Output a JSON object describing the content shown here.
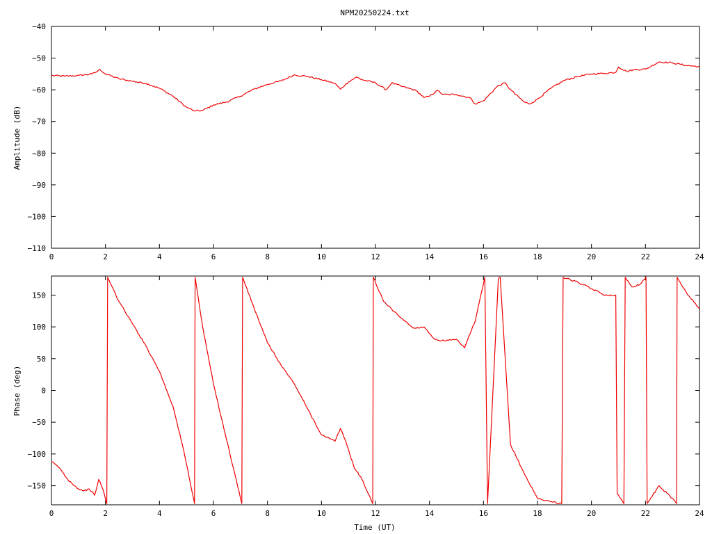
{
  "title": "NPM20250224.txt",
  "colors": {
    "series": "#ee0000",
    "axis": "#000000",
    "background": "#ffffff"
  },
  "chart_data": [
    {
      "type": "line",
      "title": "NPM20250224.txt",
      "xlabel": "",
      "ylabel": "Amplitude (dB)",
      "xlim": [
        0,
        24
      ],
      "ylim": [
        -110,
        -40
      ],
      "x_ticks": [
        0,
        2,
        4,
        6,
        8,
        10,
        12,
        14,
        16,
        18,
        20,
        22,
        24
      ],
      "y_ticks": [
        -110,
        -100,
        -90,
        -80,
        -70,
        -60,
        -50,
        -40
      ],
      "x_tick_labels": [
        "0",
        "2",
        "4",
        "6",
        "8",
        "10",
        "12",
        "14",
        "16",
        "18",
        "20",
        "22",
        "24"
      ],
      "y_tick_labels": [
        "−110",
        "−100",
        "−90",
        "−80",
        "−70",
        "−60",
        "−50",
        "−40"
      ],
      "grid": false,
      "series": [
        {
          "x": [
            0,
            0.5,
            1.0,
            1.5,
            1.7,
            1.8,
            2.0,
            2.5,
            3.0,
            3.5,
            4.0,
            4.5,
            5.0,
            5.3,
            5.6,
            6.0,
            6.5,
            7.0,
            7.5,
            8.0,
            8.5,
            9.0,
            9.5,
            10.0,
            10.5,
            10.7,
            11.0,
            11.3,
            11.5,
            12.0,
            12.4,
            12.6,
            13.0,
            13.5,
            13.8,
            14.0,
            14.3,
            14.5,
            15.0,
            15.5,
            15.7,
            16.0,
            16.5,
            16.8,
            17.0,
            17.5,
            17.7,
            18.0,
            18.5,
            19.0,
            19.5,
            20.0,
            20.5,
            20.9,
            21.0,
            21.3,
            21.6,
            22.0,
            22.5,
            23.0,
            23.5,
            24.0
          ],
          "y": [
            -55.5,
            -55.7,
            -55.5,
            -55.0,
            -54.2,
            -53.6,
            -55.0,
            -56.5,
            -57.3,
            -58.0,
            -59.5,
            -62.0,
            -65.5,
            -66.7,
            -66.5,
            -64.8,
            -63.8,
            -62.0,
            -59.8,
            -58.3,
            -57.2,
            -55.3,
            -55.8,
            -56.8,
            -58.0,
            -59.8,
            -57.5,
            -56.0,
            -56.8,
            -57.8,
            -60.0,
            -57.8,
            -59.0,
            -60.2,
            -62.5,
            -62.0,
            -60.2,
            -61.5,
            -61.5,
            -62.5,
            -64.5,
            -63.5,
            -59.0,
            -57.8,
            -60.0,
            -63.8,
            -64.5,
            -63.0,
            -59.5,
            -57.0,
            -55.8,
            -55.0,
            -54.8,
            -54.5,
            -52.8,
            -54.2,
            -53.6,
            -53.5,
            -51.2,
            -51.5,
            -52.3,
            -52.7
          ]
        }
      ]
    },
    {
      "type": "line",
      "title": "",
      "xlabel": "Time (UT)",
      "ylabel": "Phase (deg)",
      "xlim": [
        0,
        24
      ],
      "ylim": [
        -180,
        180
      ],
      "x_ticks": [
        0,
        2,
        4,
        6,
        8,
        10,
        12,
        14,
        16,
        18,
        20,
        22,
        24
      ],
      "y_ticks": [
        -150,
        -100,
        -50,
        0,
        50,
        100,
        150
      ],
      "x_tick_labels": [
        "0",
        "2",
        "4",
        "6",
        "8",
        "10",
        "12",
        "14",
        "16",
        "18",
        "20",
        "22",
        "24"
      ],
      "y_tick_labels": [
        "−150",
        "−100",
        "−50",
        "0",
        "50",
        "100",
        "150"
      ],
      "grid": false,
      "series": [
        {
          "x": [
            0,
            0.3,
            0.6,
            1.0,
            1.2,
            1.4,
            1.6,
            1.75,
            1.9,
            2.05,
            2.08,
            2.5,
            3.0,
            3.5,
            4.0,
            4.5,
            4.9,
            5.3,
            5.32,
            5.6,
            6.0,
            6.5,
            7.05,
            7.08,
            7.5,
            8.0,
            8.5,
            9.0,
            9.5,
            10.0,
            10.5,
            10.7,
            10.9,
            11.2,
            11.5,
            11.9,
            11.92,
            12.3,
            12.8,
            13.4,
            13.8,
            14.2,
            14.6,
            15.0,
            15.3,
            15.7,
            16.05,
            16.15,
            16.55,
            16.62,
            17.0,
            17.5,
            18.0,
            18.5,
            18.9,
            18.95,
            19.5,
            20.0,
            20.5,
            20.9,
            20.95,
            21.2,
            21.25,
            21.5,
            21.8,
            22.02,
            22.06,
            22.5,
            23.0,
            23.15,
            23.17,
            23.5,
            24.0
          ],
          "y": [
            -112,
            -122,
            -140,
            -155,
            -158,
            -155,
            -165,
            -140,
            -155,
            -178,
            178,
            140,
            105,
            70,
            30,
            -25,
            -95,
            -178,
            178,
            100,
            10,
            -80,
            -178,
            178,
            130,
            75,
            40,
            10,
            -30,
            -70,
            -80,
            -60,
            -80,
            -120,
            -140,
            -178,
            178,
            140,
            120,
            98,
            100,
            80,
            78,
            80,
            67,
            110,
            178,
            -178,
            175,
            178,
            -85,
            -130,
            -170,
            -175,
            -178,
            178,
            170,
            160,
            150,
            150,
            -163,
            -178,
            178,
            163,
            167,
            178,
            -178,
            -150,
            -170,
            -178,
            178,
            155,
            128
          ]
        }
      ]
    }
  ]
}
